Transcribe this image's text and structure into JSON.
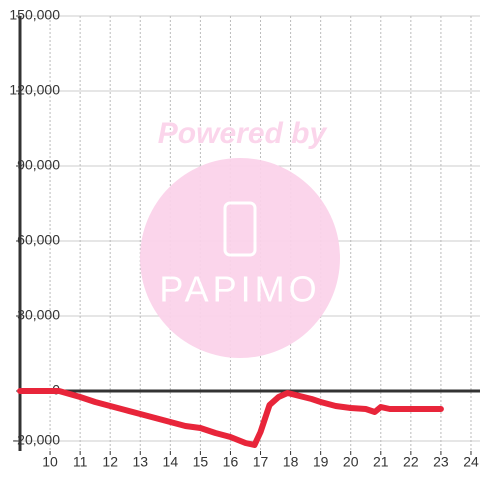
{
  "chart_data": {
    "type": "line",
    "watermark": {
      "top": "Powered by",
      "logo": "PAPIMO"
    },
    "xlim": [
      9,
      24.3
    ],
    "xticks": [
      10,
      11,
      12,
      13,
      14,
      15,
      16,
      17,
      18,
      19,
      20,
      21,
      22,
      23,
      24
    ],
    "ylim": [
      -24000,
      150000
    ],
    "yticks": [
      {
        "value": -20000,
        "label": "-20,000"
      },
      0,
      {
        "value": 30000,
        "label": "30,000"
      },
      {
        "value": 60000,
        "label": "60,000"
      },
      {
        "value": 90000,
        "label": "90,000"
      },
      {
        "value": 120000,
        "label": "120,000"
      },
      {
        "value": 150000,
        "label": "150,000"
      }
    ],
    "grid": true,
    "x": [
      9,
      10.3,
      11,
      11.5,
      12,
      12.5,
      13,
      13.5,
      14,
      14.5,
      15,
      15.5,
      16,
      16.5,
      16.8,
      17,
      17.3,
      17.6,
      17.9,
      18.3,
      18.7,
      19,
      19.5,
      20,
      20.5,
      20.8,
      21,
      21.3,
      22,
      23
    ],
    "series": [
      {
        "color": "#e8253a",
        "values": [
          0,
          0,
          -2400,
          -4400,
          -6000,
          -7600,
          -9200,
          -10800,
          -12400,
          -14000,
          -14800,
          -16800,
          -18400,
          -20800,
          -21600,
          -16400,
          -5600,
          -2400,
          -800,
          -2000,
          -3200,
          -4400,
          -6000,
          -6800,
          -7200,
          -8400,
          -6400,
          -7200,
          -7200,
          -7200
        ]
      }
    ]
  }
}
